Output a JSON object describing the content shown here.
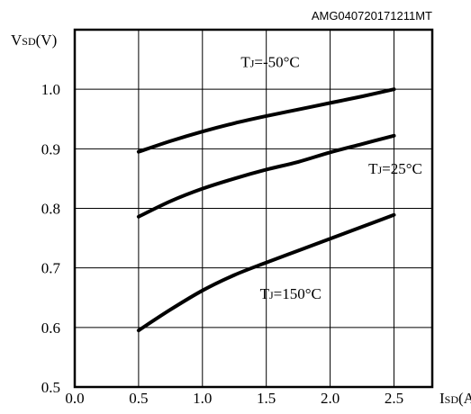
{
  "header": {
    "code": "AMG040720171211MT"
  },
  "chart_data": {
    "type": "line",
    "title": "",
    "xlabel": {
      "main": "I",
      "sub": "SD",
      "unit": "(A)"
    },
    "ylabel": {
      "main": "V",
      "sub": "SD",
      "unit": "(V)"
    },
    "xlim": [
      0,
      2.8
    ],
    "ylim": [
      0.5,
      1.1
    ],
    "xticks": [
      "0.0",
      "0.5",
      "1.0",
      "1.5",
      "2.0",
      "2.5"
    ],
    "yticks": [
      "0.5",
      "0.6",
      "0.7",
      "0.8",
      "0.9",
      "1.0"
    ],
    "grid": true,
    "series": [
      {
        "label": {
          "main": "T",
          "sub": "J",
          "rest": "=-50°C"
        },
        "x": [
          0.5,
          0.75,
          1.0,
          1.25,
          1.5,
          1.75,
          2.0,
          2.25,
          2.5
        ],
        "y": [
          0.895,
          0.913,
          0.929,
          0.943,
          0.955,
          0.966,
          0.977,
          0.988,
          1.0
        ]
      },
      {
        "label": {
          "main": "T",
          "sub": "J",
          "rest": "=25°C"
        },
        "x": [
          0.5,
          0.75,
          1.0,
          1.25,
          1.5,
          1.75,
          2.0,
          2.25,
          2.5
        ],
        "y": [
          0.786,
          0.812,
          0.833,
          0.85,
          0.865,
          0.878,
          0.894,
          0.908,
          0.922
        ]
      },
      {
        "label": {
          "main": "T",
          "sub": "J",
          "rest": "=150°C"
        },
        "x": [
          0.5,
          0.75,
          1.0,
          1.25,
          1.5,
          1.75,
          2.0,
          2.25,
          2.5
        ],
        "y": [
          0.595,
          0.63,
          0.662,
          0.688,
          0.709,
          0.729,
          0.749,
          0.769,
          0.789
        ]
      }
    ],
    "annotations": [
      {
        "series": 0,
        "anchor": [
          1.3,
          1.037
        ]
      },
      {
        "series": 1,
        "anchor": [
          2.3,
          0.858
        ]
      },
      {
        "series": 2,
        "anchor": [
          1.45,
          0.648
        ]
      }
    ]
  }
}
